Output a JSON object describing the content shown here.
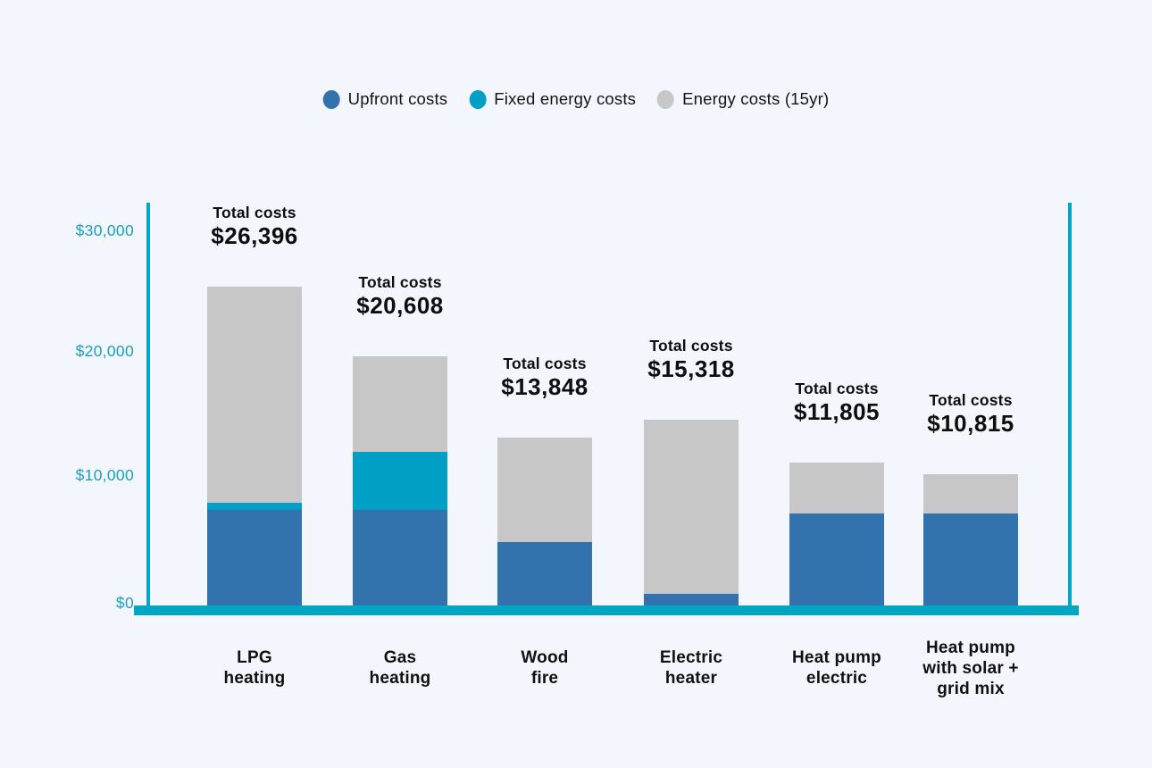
{
  "legend": {
    "items": [
      {
        "label": "Upfront costs",
        "color": "#3273ad",
        "icon": "legend-dot"
      },
      {
        "label": "Fixed energy costs",
        "color": "#00a0c6",
        "icon": "legend-dot"
      },
      {
        "label": "Energy costs (15yr)",
        "color": "#c7c7c7",
        "icon": "legend-dot"
      }
    ]
  },
  "chart_data": {
    "type": "bar",
    "stacked": true,
    "categories": [
      "LPG heating",
      "Gas heating",
      "Wood fire",
      "Electric heater",
      "Heat pump electric",
      "Heat pump with solar + grid mix"
    ],
    "categories_display": [
      "LPG\nheating",
      "Gas\nheating",
      "Wood\nfire",
      "Electric\nheater",
      "Heat pump\nelectric",
      "Heat pump\nwith solar +\ngrid mix"
    ],
    "series": [
      {
        "name": "Upfront costs",
        "color": "#3273ad",
        "values": [
          7900,
          7900,
          5250,
          950,
          7600,
          7600
        ]
      },
      {
        "name": "Fixed energy costs",
        "color": "#00a0c6",
        "values": [
          600,
          4800,
          0,
          0,
          0,
          0
        ]
      },
      {
        "name": "Energy costs (15yr)",
        "color": "#c7c7c7",
        "values": [
          17896,
          7908,
          8598,
          14368,
          4205,
          3215
        ]
      }
    ],
    "totals": [
      26396,
      20608,
      13848,
      15318,
      11805,
      10815
    ],
    "total_label": "Total costs",
    "totals_display": [
      "$26,396",
      "$20,608",
      "$13,848",
      "$15,318",
      "$11,805",
      "$10,815"
    ],
    "y_tick_labels": [
      "$30,000",
      "$20,000",
      "$10,000",
      "$0"
    ],
    "y_tick_values": [
      30000,
      20000,
      10000,
      0
    ],
    "ylim": [
      0,
      30000
    ],
    "grid": false,
    "legend_position": "top",
    "axis_color": "#00a6c4",
    "background_color": "#f3f6fc",
    "xlabel": "",
    "ylabel": ""
  }
}
